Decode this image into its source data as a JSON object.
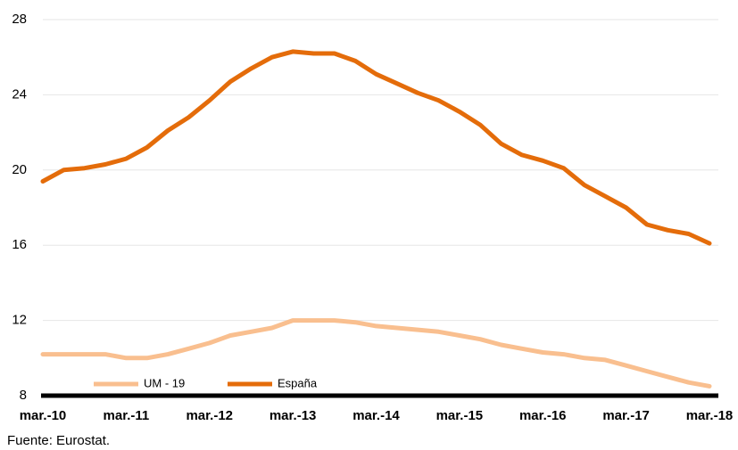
{
  "chart_data": {
    "type": "line",
    "categories": [
      "mar.-10",
      null,
      null,
      null,
      "mar.-11",
      null,
      null,
      null,
      "mar.-12",
      null,
      null,
      null,
      "mar.-13",
      null,
      null,
      null,
      "mar.-14",
      null,
      null,
      null,
      "mar.-15",
      null,
      null,
      null,
      "mar.-16",
      null,
      null,
      null,
      "mar.-17",
      null,
      null,
      null,
      "mar.-18"
    ],
    "series": [
      {
        "name": "UM - 19",
        "color": "#f9bf8f",
        "values": [
          10.2,
          10.2,
          10.2,
          10.2,
          10.0,
          10.0,
          10.2,
          10.5,
          10.8,
          11.2,
          11.4,
          11.6,
          12.0,
          12.0,
          12.0,
          11.9,
          11.7,
          11.6,
          11.5,
          11.4,
          11.2,
          11.0,
          10.7,
          10.5,
          10.3,
          10.2,
          10.0,
          9.9,
          9.6,
          9.3,
          9.0,
          8.7,
          8.5
        ]
      },
      {
        "name": "España",
        "color": "#e46c0a",
        "values": [
          19.4,
          20.0,
          20.1,
          20.3,
          20.6,
          21.2,
          22.1,
          22.8,
          23.7,
          24.7,
          25.4,
          26.0,
          26.3,
          26.2,
          26.2,
          25.8,
          25.1,
          24.6,
          24.1,
          23.7,
          23.1,
          22.4,
          21.4,
          20.8,
          20.5,
          20.1,
          19.2,
          18.6,
          18.0,
          17.1,
          16.8,
          16.6,
          16.1
        ]
      }
    ],
    "ylim": [
      8,
      28
    ],
    "yticks": [
      8,
      12,
      16,
      20,
      24,
      28
    ],
    "grid": true,
    "legend": "bottom-left",
    "source": "Fuente: Eurostat."
  }
}
